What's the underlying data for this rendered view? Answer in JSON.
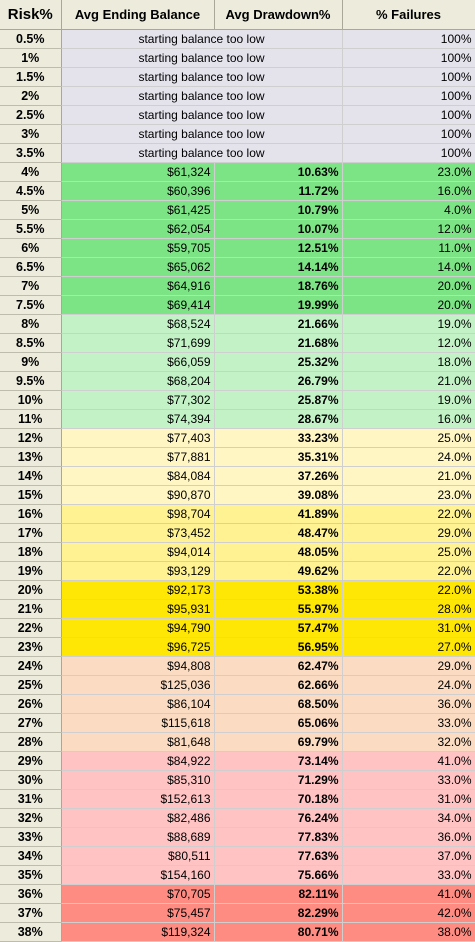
{
  "headers": {
    "risk": "Risk%",
    "balance": "Avg Ending Balance",
    "drawdown": "Avg Drawdown%",
    "failures": "% Failures"
  },
  "band_colors": {
    "gray": "#e4e3ec",
    "green": "#7de486",
    "light_green": "#c2f2c6",
    "pale_yellow": "#fff6c3",
    "yellow": "#fff293",
    "bright_yellow": "#ffe705",
    "peach": "#fbdcc2",
    "pink": "#ffc3c3",
    "salmon": "#ff8c82"
  },
  "rows": [
    {
      "risk": "0.5%",
      "note": "starting balance too low",
      "failures": "100%",
      "band": "gray"
    },
    {
      "risk": "1%",
      "note": "starting balance too low",
      "failures": "100%",
      "band": "gray"
    },
    {
      "risk": "1.5%",
      "note": "starting balance too low",
      "failures": "100%",
      "band": "gray"
    },
    {
      "risk": "2%",
      "note": "starting balance too low",
      "failures": "100%",
      "band": "gray"
    },
    {
      "risk": "2.5%",
      "note": "starting balance too low",
      "failures": "100%",
      "band": "gray"
    },
    {
      "risk": "3%",
      "note": "starting balance too low",
      "failures": "100%",
      "band": "gray"
    },
    {
      "risk": "3.5%",
      "note": "starting balance too low",
      "failures": "100%",
      "band": "gray"
    },
    {
      "risk": "4%",
      "balance": "$61,324",
      "drawdown": "10.63%",
      "failures": "23.0%",
      "band": "green"
    },
    {
      "risk": "4.5%",
      "balance": "$60,396",
      "drawdown": "11.72%",
      "failures": "16.0%",
      "band": "green"
    },
    {
      "risk": "5%",
      "balance": "$61,425",
      "drawdown": "10.79%",
      "failures": "4.0%",
      "band": "green"
    },
    {
      "risk": "5.5%",
      "balance": "$62,054",
      "drawdown": "10.07%",
      "failures": "12.0%",
      "band": "green"
    },
    {
      "risk": "6%",
      "balance": "$59,705",
      "drawdown": "12.51%",
      "failures": "11.0%",
      "band": "green"
    },
    {
      "risk": "6.5%",
      "balance": "$65,062",
      "drawdown": "14.14%",
      "failures": "14.0%",
      "band": "green"
    },
    {
      "risk": "7%",
      "balance": "$64,916",
      "drawdown": "18.76%",
      "failures": "20.0%",
      "band": "green"
    },
    {
      "risk": "7.5%",
      "balance": "$69,414",
      "drawdown": "19.99%",
      "failures": "20.0%",
      "band": "green"
    },
    {
      "risk": "8%",
      "balance": "$68,524",
      "drawdown": "21.66%",
      "failures": "19.0%",
      "band": "light_green"
    },
    {
      "risk": "8.5%",
      "balance": "$71,699",
      "drawdown": "21.68%",
      "failures": "12.0%",
      "band": "light_green"
    },
    {
      "risk": "9%",
      "balance": "$66,059",
      "drawdown": "25.32%",
      "failures": "18.0%",
      "band": "light_green"
    },
    {
      "risk": "9.5%",
      "balance": "$68,204",
      "drawdown": "26.79%",
      "failures": "21.0%",
      "band": "light_green"
    },
    {
      "risk": "10%",
      "balance": "$77,302",
      "drawdown": "25.87%",
      "failures": "19.0%",
      "band": "light_green"
    },
    {
      "risk": "11%",
      "balance": "$74,394",
      "drawdown": "28.67%",
      "failures": "16.0%",
      "band": "light_green"
    },
    {
      "risk": "12%",
      "balance": "$77,403",
      "drawdown": "33.23%",
      "failures": "25.0%",
      "band": "pale_yellow"
    },
    {
      "risk": "13%",
      "balance": "$77,881",
      "drawdown": "35.31%",
      "failures": "24.0%",
      "band": "pale_yellow"
    },
    {
      "risk": "14%",
      "balance": "$84,084",
      "drawdown": "37.26%",
      "failures": "21.0%",
      "band": "pale_yellow"
    },
    {
      "risk": "15%",
      "balance": "$90,870",
      "drawdown": "39.08%",
      "failures": "23.0%",
      "band": "pale_yellow"
    },
    {
      "risk": "16%",
      "balance": "$98,704",
      "drawdown": "41.89%",
      "failures": "22.0%",
      "band": "yellow"
    },
    {
      "risk": "17%",
      "balance": "$73,452",
      "drawdown": "48.47%",
      "failures": "29.0%",
      "band": "yellow"
    },
    {
      "risk": "18%",
      "balance": "$94,014",
      "drawdown": "48.05%",
      "failures": "25.0%",
      "band": "yellow"
    },
    {
      "risk": "19%",
      "balance": "$93,129",
      "drawdown": "49.62%",
      "failures": "22.0%",
      "band": "yellow"
    },
    {
      "risk": "20%",
      "balance": "$92,173",
      "drawdown": "53.38%",
      "failures": "22.0%",
      "band": "bright_yellow"
    },
    {
      "risk": "21%",
      "balance": "$95,931",
      "drawdown": "55.97%",
      "failures": "28.0%",
      "band": "bright_yellow"
    },
    {
      "risk": "22%",
      "balance": "$94,790",
      "drawdown": "57.47%",
      "failures": "31.0%",
      "band": "bright_yellow"
    },
    {
      "risk": "23%",
      "balance": "$96,725",
      "drawdown": "56.95%",
      "failures": "27.0%",
      "band": "bright_yellow"
    },
    {
      "risk": "24%",
      "balance": "$94,808",
      "drawdown": "62.47%",
      "failures": "29.0%",
      "band": "peach"
    },
    {
      "risk": "25%",
      "balance": "$125,036",
      "drawdown": "62.66%",
      "failures": "24.0%",
      "band": "peach"
    },
    {
      "risk": "26%",
      "balance": "$86,104",
      "drawdown": "68.50%",
      "failures": "36.0%",
      "band": "peach"
    },
    {
      "risk": "27%",
      "balance": "$115,618",
      "drawdown": "65.06%",
      "failures": "33.0%",
      "band": "peach"
    },
    {
      "risk": "28%",
      "balance": "$81,648",
      "drawdown": "69.79%",
      "failures": "32.0%",
      "band": "peach"
    },
    {
      "risk": "29%",
      "balance": "$84,922",
      "drawdown": "73.14%",
      "failures": "41.0%",
      "band": "pink"
    },
    {
      "risk": "30%",
      "balance": "$85,310",
      "drawdown": "71.29%",
      "failures": "33.0%",
      "band": "pink"
    },
    {
      "risk": "31%",
      "balance": "$152,613",
      "drawdown": "70.18%",
      "failures": "31.0%",
      "band": "pink"
    },
    {
      "risk": "32%",
      "balance": "$82,486",
      "drawdown": "76.24%",
      "failures": "34.0%",
      "band": "pink"
    },
    {
      "risk": "33%",
      "balance": "$88,689",
      "drawdown": "77.83%",
      "failures": "36.0%",
      "band": "pink"
    },
    {
      "risk": "34%",
      "balance": "$80,511",
      "drawdown": "77.63%",
      "failures": "37.0%",
      "band": "pink"
    },
    {
      "risk": "35%",
      "balance": "$154,160",
      "drawdown": "75.66%",
      "failures": "33.0%",
      "band": "pink"
    },
    {
      "risk": "36%",
      "balance": "$70,705",
      "drawdown": "82.11%",
      "failures": "41.0%",
      "band": "salmon"
    },
    {
      "risk": "37%",
      "balance": "$75,457",
      "drawdown": "82.29%",
      "failures": "42.0%",
      "band": "salmon"
    },
    {
      "risk": "38%",
      "balance": "$119,324",
      "drawdown": "80.71%",
      "failures": "38.0%",
      "band": "salmon"
    }
  ]
}
